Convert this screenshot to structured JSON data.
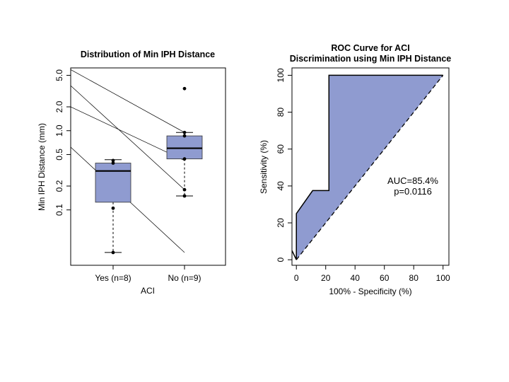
{
  "colors": {
    "box_fill": "#8f9bd0",
    "roc_fill": "#8f9bd0",
    "ink": "#000000"
  },
  "chart_data": [
    {
      "type": "box",
      "title": "Distribution of Min IPH Distance",
      "xlabel": "ACI",
      "ylabel": "Min IPH Distance  (mm)",
      "yscale": "log",
      "ylim": [
        0.02,
        6.2
      ],
      "yticks": [
        0.1,
        0.2,
        0.5,
        1.0,
        2.0,
        5.0
      ],
      "ytick_labels": [
        "0.1",
        "0.2",
        "0.5",
        "1.0",
        "2.0",
        "5.0"
      ],
      "categories": [
        "Yes (n=8)",
        "No (n=9)"
      ],
      "boxes": [
        {
          "name": "Yes (n=8)",
          "whisker_low": 0.029,
          "q1": 0.125,
          "median": 0.31,
          "q3": 0.39,
          "whisker_high": 0.43,
          "points": [
            0.029,
            0.105,
            0.39,
            0.42
          ]
        },
        {
          "name": "No (n=9)",
          "whisker_low": 0.15,
          "q1": 0.44,
          "median": 0.6,
          "q3": 0.86,
          "whisker_high": 0.95,
          "points": [
            0.15,
            0.18,
            0.44,
            0.86,
            0.95,
            3.4
          ]
        }
      ],
      "connecting_lines": [
        {
          "from": 5.9,
          "to": 0.95
        },
        {
          "from": 3.7,
          "to": 0.18
        },
        {
          "from": 2.0,
          "to": 0.42
        },
        {
          "from": 0.62,
          "to": 0.029
        }
      ]
    },
    {
      "type": "line",
      "title": "ROC Curve for ACI",
      "subtitle": "Discrimination using Min IPH Distance",
      "xlabel": "100% - Specificity (%)",
      "ylabel": "Sensitivity (%)",
      "xlim": [
        -3,
        104
      ],
      "ylim": [
        -3,
        104
      ],
      "xticks": [
        0,
        20,
        40,
        60,
        80,
        100
      ],
      "yticks": [
        0,
        20,
        40,
        60,
        80,
        100
      ],
      "curve": {
        "x": [
          -3,
          0,
          0,
          11.1,
          22.2,
          22.2,
          100
        ],
        "y": [
          5,
          0,
          25,
          37.5,
          37.5,
          100,
          100
        ]
      },
      "reference_line": {
        "x": [
          0,
          100
        ],
        "y": [
          0,
          100
        ],
        "style": "dashed"
      },
      "annotations": [
        "AUC=85.4%",
        "p=0.0116"
      ]
    }
  ]
}
